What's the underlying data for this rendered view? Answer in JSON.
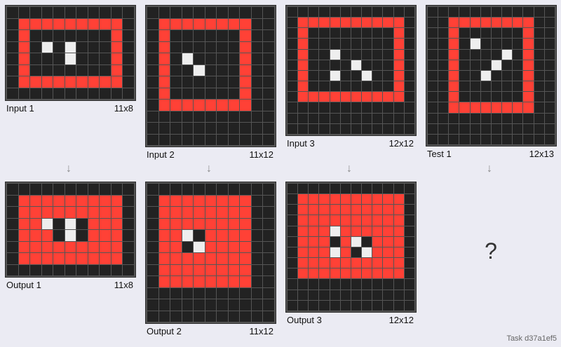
{
  "palette": {
    "0": "#222222",
    "2": "#ff4136",
    "5": "#eeeeee"
  },
  "arrow_glyph": "↓",
  "question_mark": "?",
  "task_label": "Task d37a1ef5",
  "panels": [
    {
      "id": "input-1",
      "name": "Input 1",
      "size": "11x8",
      "grid": [
        "00000000000",
        "02222222220",
        "02000000020",
        "02050500020",
        "02000500020",
        "02000000020",
        "02222222220",
        "00000000000"
      ]
    },
    {
      "id": "output-1",
      "name": "Output 1",
      "size": "11x8",
      "grid": [
        "00000000000",
        "02222222220",
        "02222222220",
        "02250502220",
        "02220502220",
        "02222222220",
        "02222222220",
        "00000000000"
      ]
    },
    {
      "id": "input-2",
      "name": "Input 2",
      "size": "11x12",
      "grid": [
        "00000000000",
        "02222222200",
        "02000000200",
        "02000000200",
        "02050000200",
        "02005000200",
        "02000000200",
        "02000000200",
        "02222222200",
        "00000000000",
        "00000000000",
        "00000000000"
      ]
    },
    {
      "id": "output-2",
      "name": "Output 2",
      "size": "11x12",
      "grid": [
        "00000000000",
        "02222222200",
        "02222222200",
        "02222222200",
        "02250222200",
        "02205222200",
        "02222222200",
        "02222222200",
        "02222222200",
        "00000000000",
        "00000000000",
        "00000000000"
      ]
    },
    {
      "id": "input-3",
      "name": "Input 3",
      "size": "12x12",
      "grid": [
        "000000000000",
        "022222222220",
        "020000000020",
        "020000000020",
        "020050000020",
        "020000500020",
        "020050050020",
        "020000000020",
        "022222222220",
        "000000000000",
        "000000000000",
        "000000000000"
      ]
    },
    {
      "id": "output-3",
      "name": "Output 3",
      "size": "12x12",
      "grid": [
        "000000000000",
        "022222222220",
        "022222222220",
        "022222222220",
        "022252222220",
        "022202502220",
        "022252052220",
        "022222222220",
        "022222222220",
        "000000000000",
        "000000000000",
        "000000000000"
      ]
    },
    {
      "id": "test-1",
      "name": "Test 1",
      "size": "12x13",
      "grid": [
        "000000000000",
        "002222222200",
        "002000000200",
        "002050000200",
        "002000050200",
        "002000500200",
        "002005000200",
        "002000000200",
        "002000000200",
        "002222222200",
        "000000000000",
        "000000000000",
        "000000000000"
      ]
    }
  ]
}
